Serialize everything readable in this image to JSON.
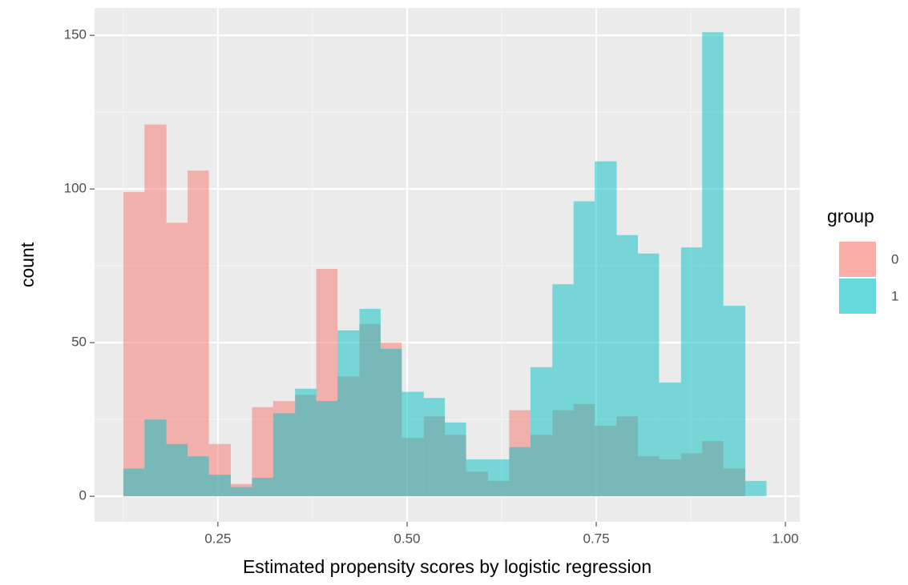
{
  "chart_data": {
    "type": "histogram",
    "x_label": "Estimated propensity scores by logistic regression",
    "y_label": "count",
    "legend_title": "group",
    "legend": "right",
    "grid": true,
    "bins": [
      0.125,
      0.153,
      0.182,
      0.21,
      0.238,
      0.267,
      0.295,
      0.323,
      0.352,
      0.38,
      0.408,
      0.437,
      0.465,
      0.493,
      0.522,
      0.55,
      0.578,
      0.607,
      0.635,
      0.663,
      0.692,
      0.72,
      0.748,
      0.777,
      0.805,
      0.833,
      0.862,
      0.89,
      0.918,
      0.947,
      0.975
    ],
    "series": [
      {
        "name": "0",
        "color": "#F8766D",
        "values": [
          99,
          121,
          89,
          106,
          17,
          4,
          29,
          31,
          33,
          74,
          39,
          56,
          50,
          19,
          26,
          20,
          8,
          5,
          28,
          20,
          28,
          30,
          23,
          26,
          13,
          12,
          14,
          18,
          9,
          0
        ]
      },
      {
        "name": "1",
        "color": "#00BFC4",
        "values": [
          9,
          25,
          17,
          13,
          7,
          3,
          6,
          27,
          35,
          31,
          54,
          61,
          48,
          34,
          32,
          24,
          12,
          12,
          16,
          42,
          69,
          96,
          109,
          85,
          79,
          37,
          81,
          151,
          62,
          5
        ]
      }
    ],
    "xlim": [
      0.087,
      1.019
    ],
    "ylim": [
      -8.3,
      158.9
    ],
    "xticks": [
      0.25,
      {
        "value": 0.5,
        "label": "0.50"
      },
      0.75,
      {
        "value": 1,
        "label": "1.00"
      }
    ],
    "yticks": [
      0,
      50,
      100,
      150
    ]
  }
}
